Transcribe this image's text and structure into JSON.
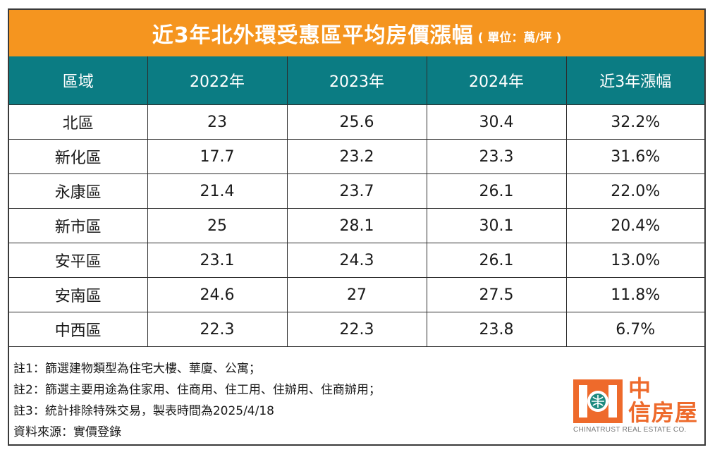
{
  "title": "近3年北外環受惠區平均房價漲幅",
  "unit": "( 單位：萬/坪 )",
  "chart_data": {
    "type": "table",
    "columns": [
      "區域",
      "2022年",
      "2023年",
      "2024年",
      "近3年漲幅"
    ],
    "rows": [
      [
        "北區",
        "23",
        "25.6",
        "30.4",
        "32.2%"
      ],
      [
        "新化區",
        "17.7",
        "23.2",
        "23.3",
        "31.6%"
      ],
      [
        "永康區",
        "21.4",
        "23.7",
        "26.1",
        "22.0%"
      ],
      [
        "新市區",
        "25",
        "28.1",
        "30.1",
        "20.4%"
      ],
      [
        "安平區",
        "23.1",
        "24.3",
        "26.1",
        "13.0%"
      ],
      [
        "安南區",
        "24.6",
        "27",
        "27.5",
        "11.8%"
      ],
      [
        "中西區",
        "22.3",
        "22.3",
        "23.8",
        "6.7%"
      ]
    ]
  },
  "notes": [
    "註1：篩選建物類型為住宅大樓、華廈、公寓；",
    "註2：篩選主要用途為住家用、住商用、住工用、住辦用、住商辦用；",
    "註3：統計排除特殊交易，製表時間為2025/4/18",
    "資料來源：實價登錄"
  ],
  "logo": {
    "zh_line1": "中",
    "zh_line2": "信房屋",
    "en": "CHINATRUST REAL ESTATE CO.",
    "icon": "chinatrust-logo-icon"
  },
  "colors": {
    "title_bg": "#f5951f",
    "header_bg": "#0b7c83",
    "logo": "#ee6a2b"
  }
}
